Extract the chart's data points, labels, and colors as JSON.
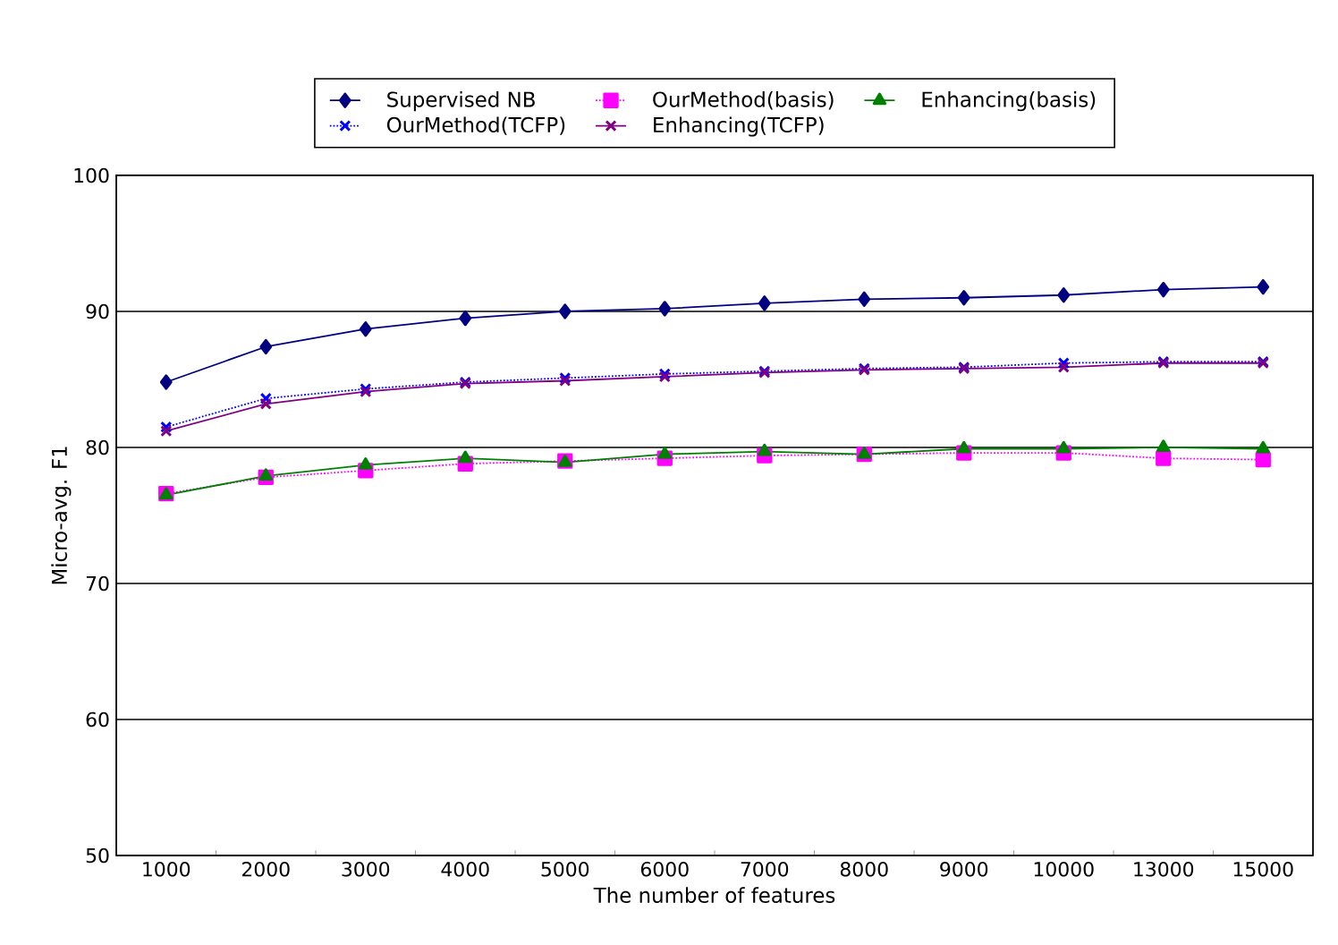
{
  "chart_data": {
    "type": "line",
    "xlabel": "The number of features",
    "ylabel": "Micro-avg. F1",
    "categories": [
      "1000",
      "2000",
      "3000",
      "4000",
      "5000",
      "6000",
      "7000",
      "8000",
      "9000",
      "10000",
      "13000",
      "15000"
    ],
    "ylim": [
      50,
      100
    ],
    "yticks": [
      50,
      60,
      70,
      80,
      90,
      100
    ],
    "grid": "y",
    "legend": "top",
    "series": [
      {
        "name": "Supervised NB",
        "color": "#000080",
        "marker": "diamond",
        "line_style": "solid",
        "values": [
          84.8,
          87.4,
          88.7,
          89.5,
          90.0,
          90.2,
          90.6,
          90.9,
          91.0,
          91.2,
          91.6,
          91.8
        ]
      },
      {
        "name": "OurMethod(basis)",
        "color": "#ff00ff",
        "marker": "square",
        "line_style": "dotted",
        "values": [
          76.6,
          77.8,
          78.3,
          78.8,
          79.0,
          79.2,
          79.4,
          79.5,
          79.6,
          79.6,
          79.2,
          79.1
        ]
      },
      {
        "name": "Enhancing(basis)",
        "color": "#008000",
        "marker": "triangle",
        "line_style": "solid",
        "values": [
          76.5,
          77.9,
          78.7,
          79.2,
          78.9,
          79.5,
          79.7,
          79.5,
          79.9,
          79.9,
          80.0,
          79.9
        ]
      },
      {
        "name": "OurMethod(TCFP)",
        "color": "#0000ff",
        "marker": "cross",
        "line_style": "dotted",
        "values": [
          81.5,
          83.6,
          84.3,
          84.8,
          85.1,
          85.4,
          85.6,
          85.8,
          85.9,
          86.2,
          86.3,
          86.3
        ]
      },
      {
        "name": "Enhancing(TCFP)",
        "color": "#800080",
        "marker": "cross",
        "line_style": "solid",
        "values": [
          81.2,
          83.2,
          84.1,
          84.7,
          84.9,
          85.2,
          85.5,
          85.7,
          85.8,
          85.9,
          86.2,
          86.2
        ]
      }
    ]
  }
}
